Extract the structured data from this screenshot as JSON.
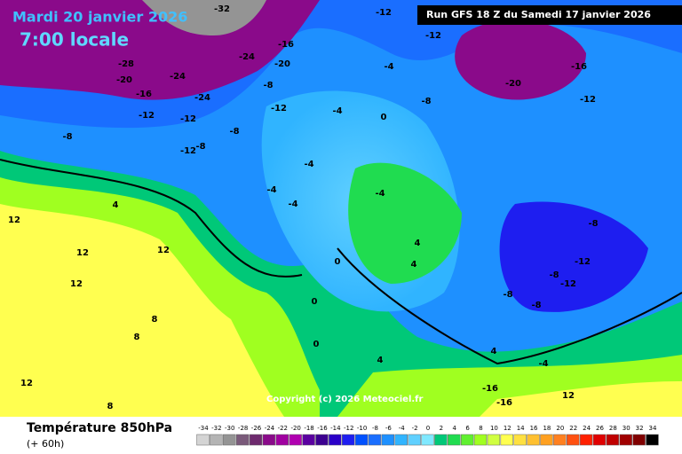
{
  "header": {
    "date": "Mardi 20 janvier 2026",
    "time": "7:00 locale",
    "run": "Run GFS 18 Z du Samedi 17 janvier 2026"
  },
  "footer": {
    "title": "Température 850hPa",
    "lead": "(+ 60h)",
    "copyright": "Copyright (c) 2026 Meteociel.fr"
  },
  "legend": {
    "values": [
      -34,
      -32,
      -30,
      -28,
      -26,
      -24,
      -22,
      -20,
      -18,
      -16,
      -14,
      -12,
      -10,
      -8,
      -6,
      -4,
      -2,
      0,
      2,
      4,
      6,
      8,
      10,
      12,
      14,
      16,
      18,
      20,
      22,
      24,
      26,
      28,
      30,
      32,
      34
    ],
    "colors": [
      "#d4d4d4",
      "#b4b4b4",
      "#949494",
      "#7a5a7a",
      "#6e2a6e",
      "#8a0a8a",
      "#a000a0",
      "#b000b0",
      "#5a00a0",
      "#3c0090",
      "#2a00c8",
      "#1e1ef0",
      "#0050ff",
      "#1a6eff",
      "#1e90ff",
      "#30b4ff",
      "#60d0ff",
      "#80e8ff",
      "#00c878",
      "#20dc50",
      "#60f030",
      "#a0ff20",
      "#d0ff40",
      "#ffff50",
      "#ffe040",
      "#ffc030",
      "#ffa020",
      "#ff8020",
      "#ff5010",
      "#ff2000",
      "#e00000",
      "#c00000",
      "#a00000",
      "#800000",
      "#000000"
    ]
  },
  "map": {
    "contour_labels": [
      "-32",
      "-28",
      "-24",
      "-20",
      "-16",
      "-12",
      "-12",
      "-8",
      "-8",
      "-12",
      "-8",
      "-24",
      "-24",
      "-16",
      "-20",
      "-8",
      "-12",
      "-12",
      "-12",
      "-16",
      "-20",
      "-12",
      "-8",
      "-4",
      "-4",
      "-4",
      "-4",
      "-4",
      "0",
      "-4",
      "4",
      "12",
      "12",
      "12",
      "12",
      "8",
      "8",
      "4",
      "4",
      "0",
      "0",
      "0",
      "-8",
      "-12",
      "-8",
      "-8",
      "-8",
      "-12",
      "4",
      "4",
      "-4",
      "12",
      "-16",
      "-16",
      "12",
      "8"
    ]
  }
}
